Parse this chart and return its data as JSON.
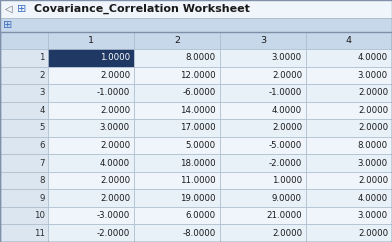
{
  "title": "Covariance_Correlation Worksheet",
  "col_headers": [
    "1",
    "2",
    "3",
    "4"
  ],
  "table_data": [
    [
      1.0,
      8.0,
      3.0,
      4.0
    ],
    [
      2.0,
      12.0,
      2.0,
      3.0
    ],
    [
      -1.0,
      -6.0,
      -1.0,
      2.0
    ],
    [
      2.0,
      14.0,
      4.0,
      2.0
    ],
    [
      3.0,
      17.0,
      2.0,
      2.0
    ],
    [
      2.0,
      5.0,
      -5.0,
      8.0
    ],
    [
      4.0,
      18.0,
      -2.0,
      3.0
    ],
    [
      2.0,
      11.0,
      1.0,
      2.0
    ],
    [
      2.0,
      19.0,
      9.0,
      4.0
    ],
    [
      -3.0,
      6.0,
      21.0,
      3.0
    ],
    [
      -2.0,
      -8.0,
      2.0,
      2.0
    ]
  ],
  "header_bg": "#c8d8eb",
  "row_header_bg": "#dce6f1",
  "cell_bg_even": "#e8f0f8",
  "cell_bg_odd": "#f0f5fb",
  "selected_cell_bg": "#1f3864",
  "selected_cell_fg": "#ffffff",
  "title_bar_bg": "#dce8f5",
  "title_bar_bg2": "#ffffff",
  "grid_color": "#aabccc",
  "title_color": "#1a1a1a",
  "row_num_color": "#2c2c2c",
  "cell_text_color": "#1a1a1a",
  "header_text_color": "#1a1a1a",
  "toolbar_bg": "#c8d8eb",
  "icon_color": "#4472c4",
  "title_fontsize": 8.0,
  "cell_fontsize": 6.2,
  "header_fontsize": 6.8
}
